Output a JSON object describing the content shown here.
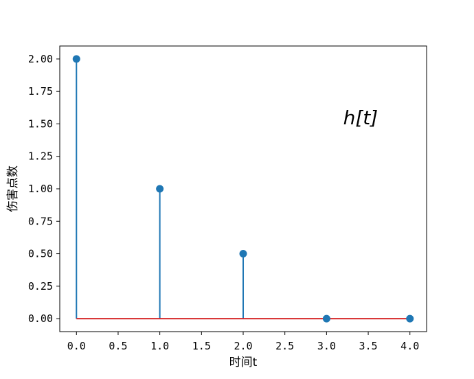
{
  "chart_data": {
    "type": "stem",
    "x": [
      0,
      1,
      2,
      3,
      4
    ],
    "y": [
      2.0,
      1.0,
      0.5,
      0.0,
      0.0
    ],
    "baseline": 0,
    "xlim": [
      -0.2,
      4.2
    ],
    "ylim": [
      -0.1,
      2.1
    ],
    "xticks": [
      0.0,
      0.5,
      1.0,
      1.5,
      2.0,
      2.5,
      3.0,
      3.5,
      4.0
    ],
    "yticks": [
      0.0,
      0.25,
      0.5,
      0.75,
      1.0,
      1.25,
      1.5,
      1.75,
      2.0
    ],
    "xtick_labels": [
      "0.0",
      "0.5",
      "1.0",
      "1.5",
      "2.0",
      "2.5",
      "3.0",
      "3.5",
      "4.0"
    ],
    "ytick_labels": [
      "0.00",
      "0.25",
      "0.50",
      "0.75",
      "1.00",
      "1.25",
      "1.50",
      "1.75",
      "2.00"
    ],
    "xlabel": "时间t",
    "ylabel": "伤害点数",
    "annotation": {
      "text": "h[t]",
      "x": 3.2,
      "y": 1.55
    },
    "grid": false,
    "colors": {
      "stem": "#1f77b4",
      "marker": "#1f77b4",
      "baseline": "#d62728"
    }
  }
}
